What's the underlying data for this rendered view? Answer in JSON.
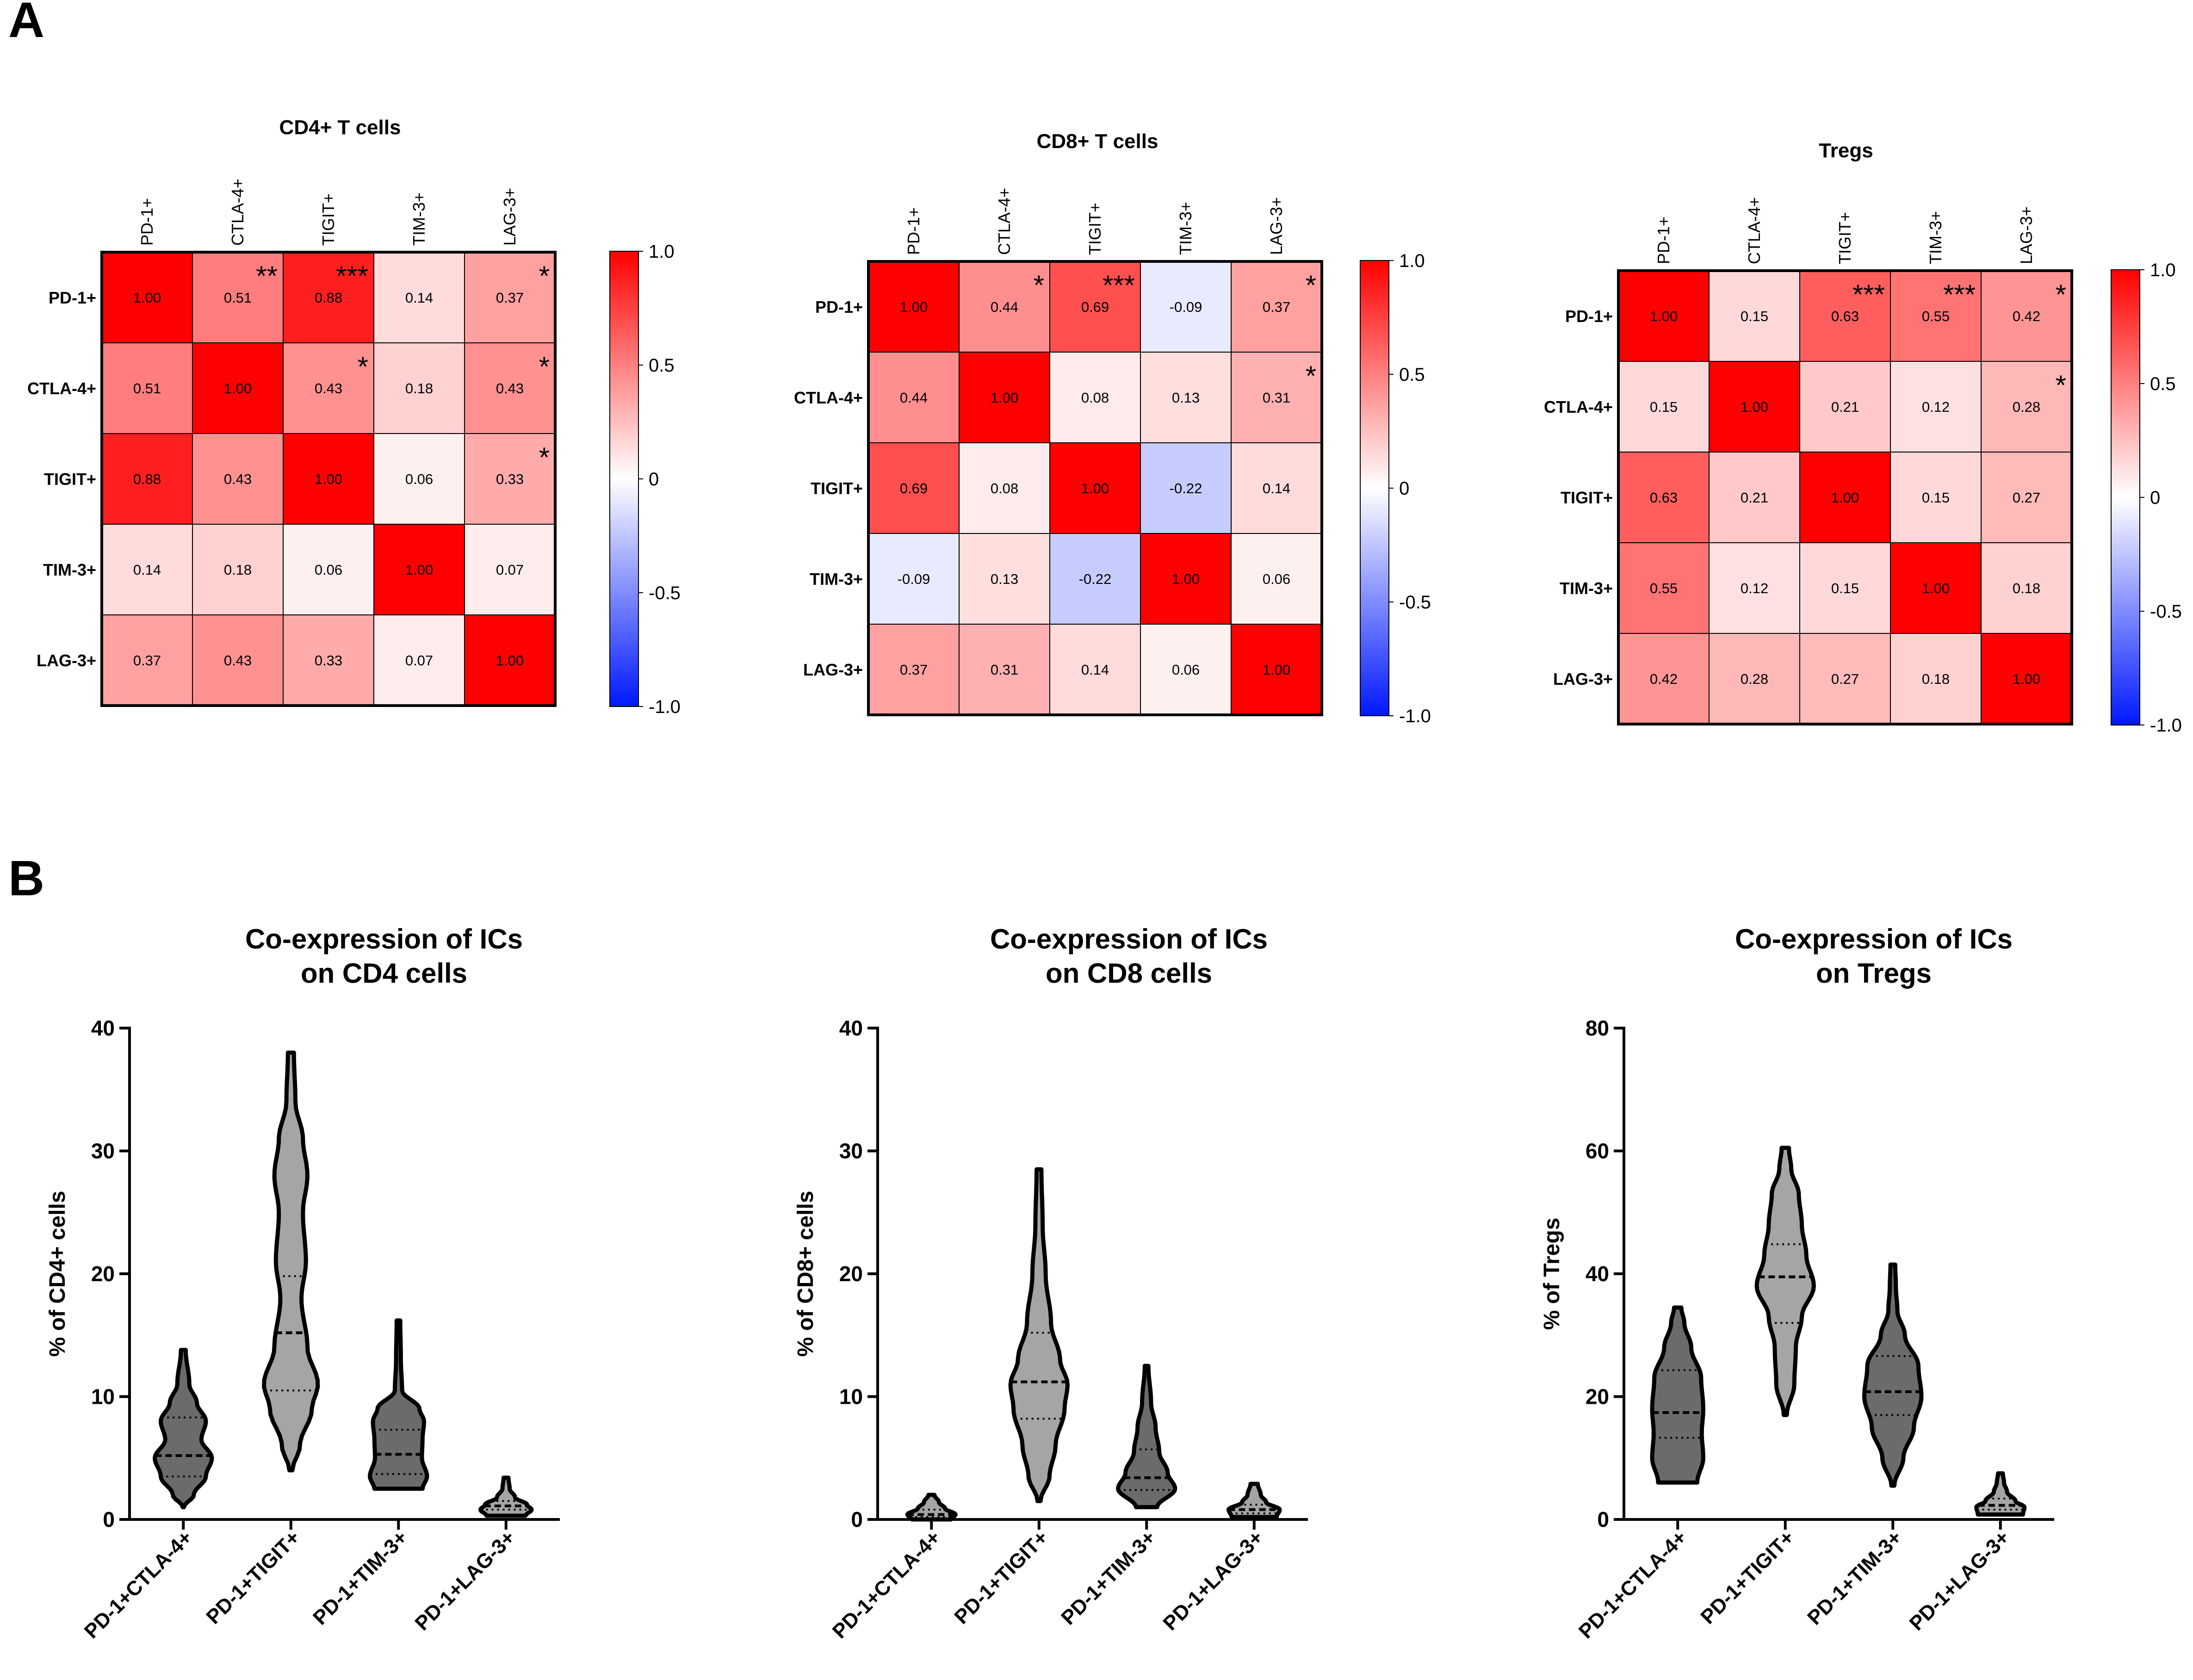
{
  "panel_labels": [
    "A",
    "B"
  ],
  "heatmap_colorbar": {
    "colors": {
      "negative": "#0018ff",
      "neutral": "#ffffff",
      "positive": "#ff0000"
    },
    "ticks": [
      "1.0",
      "0.5",
      "0",
      "-0.5",
      "-1.0"
    ],
    "tick_values": [
      1.0,
      0.5,
      0,
      -0.5,
      -1.0
    ]
  },
  "violin_colors": {
    "dark": "#6b6b6b",
    "light": "#a5a5a5",
    "outline": "#000000"
  },
  "chart_data": [
    {
      "type": "heatmap",
      "title": "CD4+ T cells",
      "labels": [
        "PD-1+",
        "CTLA-4+",
        "TIGIT+",
        "TIM-3+",
        "LAG-3+"
      ],
      "values": [
        [
          1.0,
          0.51,
          0.88,
          0.14,
          0.37
        ],
        [
          0.51,
          1.0,
          0.43,
          0.18,
          0.43
        ],
        [
          0.88,
          0.43,
          1.0,
          0.06,
          0.33
        ],
        [
          0.14,
          0.18,
          0.06,
          1.0,
          0.07
        ],
        [
          0.37,
          0.43,
          0.33,
          0.07,
          1.0
        ]
      ],
      "cell_text": [
        [
          "1.00",
          "0.51",
          "0.88",
          "0.14",
          "0.37"
        ],
        [
          "0.51",
          "1.00",
          "0.43",
          "0.18",
          "0.43"
        ],
        [
          "0.88",
          "0.43",
          "1.00",
          "0.06",
          "0.33"
        ],
        [
          "0.14",
          "0.18",
          "0.06",
          "1.00",
          "0.07"
        ],
        [
          "0.37",
          "0.43",
          "0.33",
          "0.07",
          "1.00"
        ]
      ],
      "significance": [
        {
          "row": 0,
          "col": 1,
          "stars": "**"
        },
        {
          "row": 0,
          "col": 2,
          "stars": "***"
        },
        {
          "row": 0,
          "col": 4,
          "stars": "*"
        },
        {
          "row": 1,
          "col": 2,
          "stars": "*"
        },
        {
          "row": 1,
          "col": 4,
          "stars": "*"
        },
        {
          "row": 2,
          "col": 4,
          "stars": "*"
        }
      ],
      "color_range": [
        -1.0,
        1.0
      ]
    },
    {
      "type": "heatmap",
      "title": "CD8+ T cells",
      "labels": [
        "PD-1+",
        "CTLA-4+",
        "TIGIT+",
        "TIM-3+",
        "LAG-3+"
      ],
      "values": [
        [
          1.0,
          0.44,
          0.69,
          -0.09,
          0.37
        ],
        [
          0.44,
          1.0,
          0.08,
          0.13,
          0.31
        ],
        [
          0.69,
          0.08,
          1.0,
          -0.22,
          0.14
        ],
        [
          -0.09,
          0.13,
          -0.22,
          1.0,
          0.06
        ],
        [
          0.37,
          0.31,
          0.14,
          0.06,
          1.0
        ]
      ],
      "cell_text": [
        [
          "1.00",
          "0.44",
          "0.69",
          "-0.09",
          "0.37"
        ],
        [
          "0.44",
          "1.00",
          "0.08",
          "0.13",
          "0.31"
        ],
        [
          "0.69",
          "0.08",
          "1.00",
          "-0.22",
          "0.14"
        ],
        [
          "-0.09",
          "0.13",
          "-0.22",
          "1.00",
          "0.06"
        ],
        [
          "0.37",
          "0.31",
          "0.14",
          "0.06",
          "1.00"
        ]
      ],
      "significance": [
        {
          "row": 0,
          "col": 1,
          "stars": "*"
        },
        {
          "row": 0,
          "col": 2,
          "stars": "***"
        },
        {
          "row": 0,
          "col": 4,
          "stars": "*"
        },
        {
          "row": 1,
          "col": 4,
          "stars": "*"
        }
      ],
      "color_range": [
        -1.0,
        1.0
      ]
    },
    {
      "type": "heatmap",
      "title": "Tregs",
      "labels": [
        "PD-1+",
        "CTLA-4+",
        "TIGIT+",
        "TIM-3+",
        "LAG-3+"
      ],
      "values": [
        [
          1.0,
          0.15,
          0.63,
          0.55,
          0.42
        ],
        [
          0.15,
          1.0,
          0.21,
          0.12,
          0.28
        ],
        [
          0.63,
          0.21,
          1.0,
          0.15,
          0.27
        ],
        [
          0.55,
          0.12,
          0.15,
          1.0,
          0.18
        ],
        [
          0.42,
          0.28,
          0.27,
          0.18,
          1.0
        ]
      ],
      "cell_text": [
        [
          "1.00",
          "0.15",
          "0.63",
          "0.55",
          "0.42"
        ],
        [
          "0.15",
          "1.00",
          "0.21",
          "0.12",
          "0.28"
        ],
        [
          "0.63",
          "0.21",
          "1.00",
          "0.15",
          "0.27"
        ],
        [
          "0.55",
          "0.12",
          "0.15",
          "1.00",
          "0.18"
        ],
        [
          "0.42",
          "0.28",
          "0.27",
          "0.18",
          "1.00"
        ]
      ],
      "significance": [
        {
          "row": 0,
          "col": 2,
          "stars": "***"
        },
        {
          "row": 0,
          "col": 3,
          "stars": "***"
        },
        {
          "row": 0,
          "col": 4,
          "stars": "*"
        },
        {
          "row": 1,
          "col": 4,
          "stars": "*"
        }
      ],
      "color_range": [
        -1.0,
        1.0
      ]
    },
    {
      "type": "violin",
      "title": [
        "Co-expression of ICs",
        "on CD4 cells"
      ],
      "ylabel": "% of CD4+ cells",
      "ylim": [
        0,
        40
      ],
      "yticks": [
        0,
        10,
        20,
        30,
        40
      ],
      "categories": [
        "PD-1+CTLA-4+",
        "PD-1+TIGIT+",
        "PD-1+TIM-3+",
        "PD-1+LAG-3+"
      ],
      "violins": [
        {
          "fill": "dark",
          "min": 1.0,
          "max": 13.8,
          "q1": 3.5,
          "median": 5.2,
          "q3": 8.3,
          "profile": [
            [
              1.0,
              0.02
            ],
            [
              2.0,
              0.35
            ],
            [
              3.5,
              0.75
            ],
            [
              5.0,
              0.95
            ],
            [
              6.5,
              0.6
            ],
            [
              8.0,
              0.75
            ],
            [
              9.5,
              0.45
            ],
            [
              11.0,
              0.2
            ],
            [
              13.8,
              0.08
            ]
          ]
        },
        {
          "fill": "light",
          "min": 4.0,
          "max": 38.0,
          "q1": 10.5,
          "median": 15.2,
          "q3": 19.8,
          "profile": [
            [
              4.0,
              0.05
            ],
            [
              6.0,
              0.3
            ],
            [
              9.0,
              0.7
            ],
            [
              11.0,
              0.9
            ],
            [
              14.0,
              0.55
            ],
            [
              18.0,
              0.35
            ],
            [
              21.0,
              0.5
            ],
            [
              25.0,
              0.4
            ],
            [
              28.0,
              0.55
            ],
            [
              31.0,
              0.4
            ],
            [
              34.0,
              0.15
            ],
            [
              38.0,
              0.1
            ]
          ]
        },
        {
          "fill": "dark",
          "min": 2.5,
          "max": 16.2,
          "q1": 3.7,
          "median": 5.3,
          "q3": 7.3,
          "profile": [
            [
              2.5,
              0.8
            ],
            [
              3.5,
              0.95
            ],
            [
              5.0,
              0.78
            ],
            [
              6.5,
              0.8
            ],
            [
              8.0,
              0.85
            ],
            [
              9.0,
              0.7
            ],
            [
              10.5,
              0.12
            ],
            [
              13.0,
              0.08
            ],
            [
              16.2,
              0.06
            ]
          ]
        },
        {
          "fill": "light",
          "min": 0.3,
          "max": 3.4,
          "q1": 0.8,
          "median": 1.1,
          "q3": 1.5,
          "profile": [
            [
              0.3,
              0.65
            ],
            [
              0.8,
              0.85
            ],
            [
              1.2,
              0.7
            ],
            [
              1.8,
              0.3
            ],
            [
              2.5,
              0.12
            ],
            [
              3.4,
              0.08
            ]
          ]
        }
      ]
    },
    {
      "type": "violin",
      "title": [
        "Co-expression of ICs",
        "on CD8 cells"
      ],
      "ylabel": "% of CD8+ cells",
      "ylim": [
        0,
        40
      ],
      "yticks": [
        0,
        10,
        20,
        30,
        40
      ],
      "categories": [
        "PD-1+CTLA-4+",
        "PD-1+TIGIT+",
        "PD-1+TIM-3+",
        "PD-1+LAG-3+"
      ],
      "violins": [
        {
          "fill": "light",
          "min": 0.0,
          "max": 2.0,
          "q1": 0.2,
          "median": 0.4,
          "q3": 0.8,
          "profile": [
            [
              0.0,
              0.65
            ],
            [
              0.4,
              0.8
            ],
            [
              0.9,
              0.45
            ],
            [
              1.4,
              0.25
            ],
            [
              2.0,
              0.1
            ]
          ]
        },
        {
          "fill": "light",
          "min": 1.5,
          "max": 28.5,
          "q1": 8.2,
          "median": 11.2,
          "q3": 15.2,
          "profile": [
            [
              1.5,
              0.05
            ],
            [
              3.5,
              0.35
            ],
            [
              6.0,
              0.55
            ],
            [
              9.0,
              0.85
            ],
            [
              11.0,
              0.95
            ],
            [
              13.0,
              0.7
            ],
            [
              16.0,
              0.4
            ],
            [
              20.0,
              0.22
            ],
            [
              24.0,
              0.12
            ],
            [
              28.5,
              0.08
            ]
          ]
        },
        {
          "fill": "dark",
          "min": 1.0,
          "max": 12.5,
          "q1": 2.4,
          "median": 3.4,
          "q3": 5.7,
          "profile": [
            [
              1.0,
              0.35
            ],
            [
              2.5,
              0.95
            ],
            [
              3.8,
              0.7
            ],
            [
              5.5,
              0.42
            ],
            [
              7.5,
              0.3
            ],
            [
              9.5,
              0.15
            ],
            [
              12.5,
              0.06
            ]
          ]
        },
        {
          "fill": "light",
          "min": 0.2,
          "max": 2.9,
          "q1": 0.5,
          "median": 0.8,
          "q3": 1.2,
          "profile": [
            [
              0.2,
              0.75
            ],
            [
              0.8,
              0.85
            ],
            [
              1.4,
              0.4
            ],
            [
              2.0,
              0.22
            ],
            [
              2.9,
              0.12
            ]
          ]
        }
      ]
    },
    {
      "type": "violin",
      "title": [
        "Co-expression of ICs",
        "on Tregs"
      ],
      "ylabel": "% of Tregs",
      "ylim": [
        0,
        80
      ],
      "yticks": [
        0,
        20,
        40,
        60,
        80
      ],
      "categories": [
        "PD-1+CTLA-4+",
        "PD-1+TIGIT+",
        "PD-1+TIM-3+",
        "PD-1+LAG-3+"
      ],
      "violins": [
        {
          "fill": "dark",
          "min": 6.0,
          "max": 34.5,
          "q1": 13.3,
          "median": 17.4,
          "q3": 24.3,
          "profile": [
            [
              6.0,
              0.65
            ],
            [
              10.0,
              0.85
            ],
            [
              14.0,
              0.8
            ],
            [
              18.0,
              0.85
            ],
            [
              23.0,
              0.78
            ],
            [
              28.0,
              0.45
            ],
            [
              32.0,
              0.22
            ],
            [
              34.5,
              0.12
            ]
          ]
        },
        {
          "fill": "light",
          "min": 17.0,
          "max": 60.5,
          "q1": 32.0,
          "median": 39.5,
          "q3": 44.8,
          "profile": [
            [
              17.0,
              0.05
            ],
            [
              22.0,
              0.3
            ],
            [
              28.0,
              0.35
            ],
            [
              33.0,
              0.55
            ],
            [
              38.0,
              0.95
            ],
            [
              43.0,
              0.7
            ],
            [
              48.0,
              0.55
            ],
            [
              53.0,
              0.45
            ],
            [
              57.0,
              0.2
            ],
            [
              60.5,
              0.12
            ]
          ]
        },
        {
          "fill": "dark",
          "min": 5.5,
          "max": 41.5,
          "q1": 17.0,
          "median": 20.8,
          "q3": 26.6,
          "profile": [
            [
              5.5,
              0.05
            ],
            [
              10.0,
              0.35
            ],
            [
              15.0,
              0.7
            ],
            [
              20.0,
              0.95
            ],
            [
              25.0,
              0.85
            ],
            [
              30.0,
              0.4
            ],
            [
              34.0,
              0.15
            ],
            [
              38.0,
              0.1
            ],
            [
              41.5,
              0.08
            ]
          ]
        },
        {
          "fill": "light",
          "min": 0.8,
          "max": 7.5,
          "q1": 1.6,
          "median": 2.3,
          "q3": 3.4,
          "profile": [
            [
              0.8,
              0.75
            ],
            [
              2.0,
              0.8
            ],
            [
              3.0,
              0.5
            ],
            [
              4.5,
              0.22
            ],
            [
              6.0,
              0.12
            ],
            [
              7.5,
              0.08
            ]
          ]
        }
      ]
    }
  ]
}
